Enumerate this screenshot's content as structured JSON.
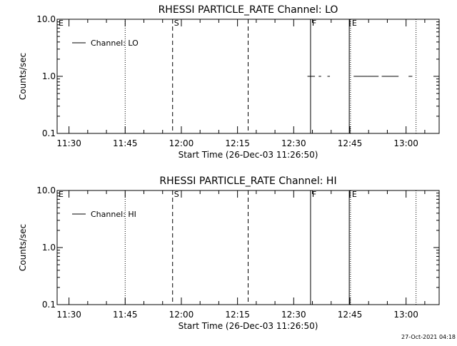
{
  "footer": {
    "timestamp": "27-Oct-2021 04:18"
  },
  "chart_data": [
    {
      "type": "line",
      "title": "RHESSI PARTICLE_RATE Channel: LO",
      "xlabel": "Start Time (26-Dec-03 11:26:50)",
      "ylabel": "Counts/sec",
      "y_scale": "log",
      "ylim": [
        0.1,
        10.0
      ],
      "y_ticks": [
        0.1,
        1.0,
        10.0
      ],
      "y_tick_labels": [
        "0.1",
        "1.0",
        "10.0"
      ],
      "xlim": [
        "11:26:50",
        "13:08:50"
      ],
      "x_ticks": [
        "11:30",
        "11:45",
        "12:00",
        "12:15",
        "12:30",
        "12:45",
        "13:00"
      ],
      "grid": false,
      "legend": {
        "position": "top-left",
        "entries": [
          "Channel: LO"
        ]
      },
      "series": [
        {
          "name": "Channel: LO",
          "segments": [
            {
              "x": [
                "12:33:40",
                "12:35:40"
              ],
              "y": 1.0
            },
            {
              "x": [
                "12:36:40",
                "12:37:20"
              ],
              "y": 1.0
            },
            {
              "x": [
                "12:39:00",
                "12:39:40"
              ],
              "y": 1.0
            },
            {
              "x": [
                "12:46:00",
                "12:49:40"
              ],
              "y": 1.0
            },
            {
              "x": [
                "12:49:40",
                "12:52:40"
              ],
              "y": 1.0
            },
            {
              "x": [
                "12:53:30",
                "12:58:00"
              ],
              "y": 1.0
            },
            {
              "x": [
                "13:00:40",
                "13:01:40"
              ],
              "y": 1.0
            }
          ]
        }
      ],
      "markers": [
        {
          "time": "11:26:50",
          "style": "dotted",
          "label": "E"
        },
        {
          "time": "11:45:00",
          "style": "dotted",
          "label": ""
        },
        {
          "time": "11:57:40",
          "style": "dashed",
          "label": "S"
        },
        {
          "time": "12:17:50",
          "style": "dashed",
          "label": ""
        },
        {
          "time": "12:34:30",
          "style": "solid",
          "label": "F"
        },
        {
          "time": "12:44:50",
          "style": "solid",
          "label": ""
        },
        {
          "time": "12:45:10",
          "style": "dotted",
          "label": "E"
        },
        {
          "time": "13:02:40",
          "style": "dotted",
          "label": ""
        }
      ]
    },
    {
      "type": "line",
      "title": "RHESSI PARTICLE_RATE Channel: HI",
      "xlabel": "Start Time (26-Dec-03 11:26:50)",
      "ylabel": "Counts/sec",
      "y_scale": "log",
      "ylim": [
        0.1,
        10.0
      ],
      "y_ticks": [
        0.1,
        1.0,
        10.0
      ],
      "y_tick_labels": [
        "0.1",
        "1.0",
        "10.0"
      ],
      "xlim": [
        "11:26:50",
        "13:08:50"
      ],
      "x_ticks": [
        "11:30",
        "11:45",
        "12:00",
        "12:15",
        "12:30",
        "12:45",
        "13:00"
      ],
      "grid": false,
      "legend": {
        "position": "top-left",
        "entries": [
          "Channel: HI"
        ]
      },
      "series": [
        {
          "name": "Channel: HI",
          "segments": []
        }
      ],
      "markers": [
        {
          "time": "11:26:50",
          "style": "dotted",
          "label": "E"
        },
        {
          "time": "11:45:00",
          "style": "dotted",
          "label": ""
        },
        {
          "time": "11:57:40",
          "style": "dashed",
          "label": "S"
        },
        {
          "time": "12:17:50",
          "style": "dashed",
          "label": ""
        },
        {
          "time": "12:34:30",
          "style": "solid",
          "label": "F"
        },
        {
          "time": "12:44:50",
          "style": "solid",
          "label": ""
        },
        {
          "time": "12:45:10",
          "style": "dotted",
          "label": "E"
        },
        {
          "time": "13:02:40",
          "style": "dotted",
          "label": ""
        }
      ]
    }
  ]
}
